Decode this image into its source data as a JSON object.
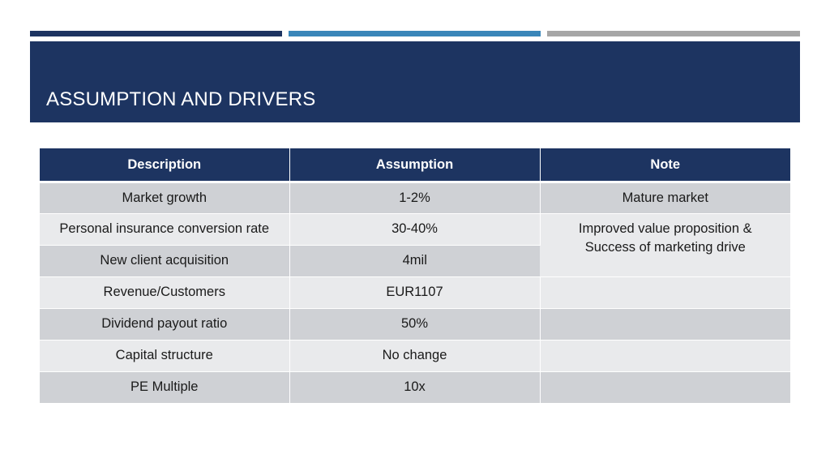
{
  "colors": {
    "navy": "#1d3461",
    "mid_blue": "#3a86b9",
    "gray_bar": "#a6a6a6",
    "row_dark": "#cfd1d5",
    "row_light": "#e9eaec"
  },
  "slide": {
    "title": "ASSUMPTION AND DRIVERS"
  },
  "table": {
    "headers": [
      "Description",
      "Assumption",
      "Note"
    ],
    "rows": [
      {
        "description": "Market growth",
        "assumption": "1-2%",
        "note": "Mature market"
      },
      {
        "description": "Personal insurance conversion rate",
        "assumption": "30-40%",
        "note": "Improved value proposition & Success of marketing drive"
      },
      {
        "description": "New client acquisition",
        "assumption": "4mil"
      },
      {
        "description": "Revenue/Customers",
        "assumption": "EUR1107",
        "note": ""
      },
      {
        "description": "Dividend payout ratio",
        "assumption": "50%",
        "note": ""
      },
      {
        "description": "Capital structure",
        "assumption": "No change",
        "note": ""
      },
      {
        "description": "PE Multiple",
        "assumption": "10x",
        "note": ""
      }
    ]
  }
}
